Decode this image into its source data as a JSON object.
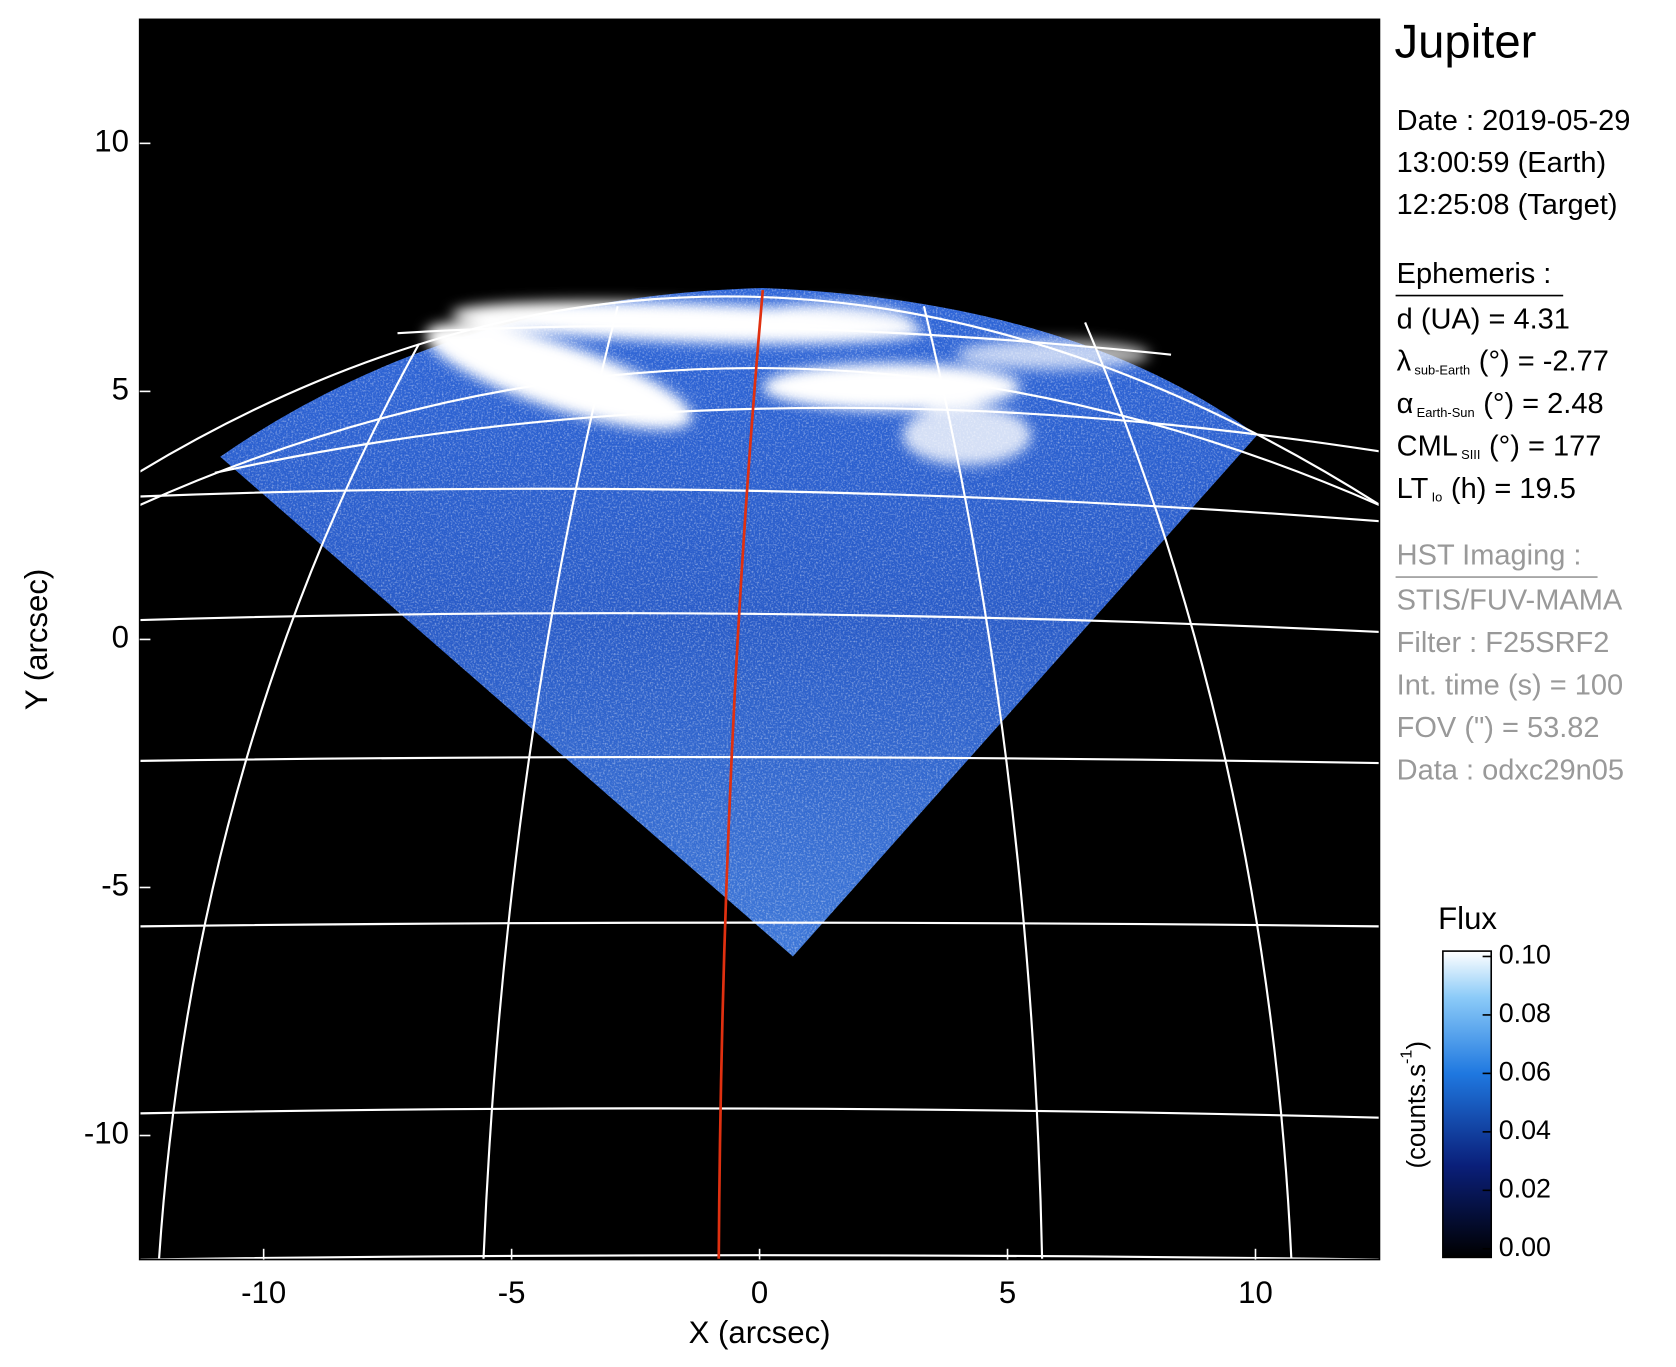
{
  "chart_data": {
    "type": "image",
    "xlabel": "X (arcsec)",
    "ylabel": "Y (arcsec)",
    "xlim": [
      -12.5,
      12.5
    ],
    "ylim": [
      -12.5,
      12.5
    ],
    "xticks": [
      -10,
      -5,
      0,
      5,
      10
    ],
    "yticks": [
      -10,
      -5,
      0,
      5,
      10
    ],
    "colorbar": {
      "title": "Flux",
      "unit": {
        "text": "(counts.s",
        "sup": "-1",
        "end": ")"
      },
      "lim": [
        0,
        0.1
      ],
      "ticks": [
        {
          "value": 0,
          "label": "0.00"
        },
        {
          "value": 0.02,
          "label": "0.02"
        },
        {
          "value": 0.04,
          "label": "0.04"
        },
        {
          "value": 0.06,
          "label": "0.06"
        },
        {
          "value": 0.08,
          "label": "0.08"
        },
        {
          "value": 0.1,
          "label": "0.10"
        }
      ]
    },
    "panel": {
      "title": "Jupiter",
      "date": [
        "Date : 2019-05-29",
        "13:00:59 (Earth)",
        "12:25:08 (Target)"
      ],
      "ephemeris_title": "Ephemeris :",
      "ephemeris": [
        {
          "symbol": "d (UA)    = 4.31",
          "sub": "",
          "rest": ""
        },
        {
          "symbol": "λ",
          "sub": "sub-Earth",
          "rest": "(°) = -2.77"
        },
        {
          "symbol": "α",
          "sub": "Earth-Sun",
          "rest": "(°) = 2.48"
        },
        {
          "symbol": "CML",
          "sub": "SIII",
          "rest": "(°) = 177"
        },
        {
          "symbol": "LT",
          "sub": "Io",
          "rest": "(h) = 19.5"
        }
      ],
      "hst_title": "HST Imaging :",
      "hst": [
        "STIS/FUV-MAMA",
        "Filter : F25SRF2",
        "Int. time (s) = 100",
        "FOV (\") = 53.82",
        "Data : odxc29n05"
      ]
    }
  }
}
